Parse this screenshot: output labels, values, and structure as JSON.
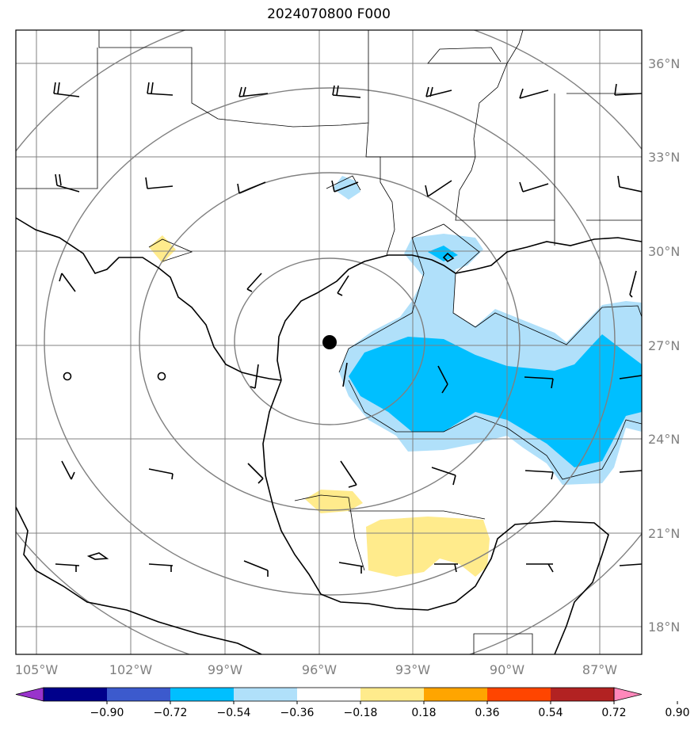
{
  "title": "2024070800 F000",
  "lon_ticks": [
    "105°W",
    "102°W",
    "99°W",
    "96°W",
    "93°W",
    "90°W",
    "87°W"
  ],
  "lat_ticks": [
    "36°N",
    "33°N",
    "30°N",
    "27°N",
    "24°N",
    "21°N",
    "18°N"
  ],
  "colorbar": {
    "labels": [
      "−0.90",
      "−0.72",
      "−0.54",
      "−0.36",
      "−0.18",
      "0.18",
      "0.36",
      "0.54",
      "0.72",
      "0.90"
    ],
    "colors": [
      "#9933cc",
      "#00008b",
      "#3c5acd",
      "#00bfff",
      "#b0e0fa",
      "#ffffff",
      "#ffeb8c",
      "#ffa500",
      "#ff4500",
      "#b22222",
      "#ff88bb"
    ]
  },
  "colors": {
    "grid": "#808080",
    "range_ring": "#808080",
    "coast": "#000000",
    "negative_fill_light": "#b0e0fa",
    "negative_fill_strong": "#00bfff",
    "positive_fill_light": "#ffeb8c"
  },
  "center_marker": {
    "lon": -95.7,
    "lat": 27.0
  }
}
